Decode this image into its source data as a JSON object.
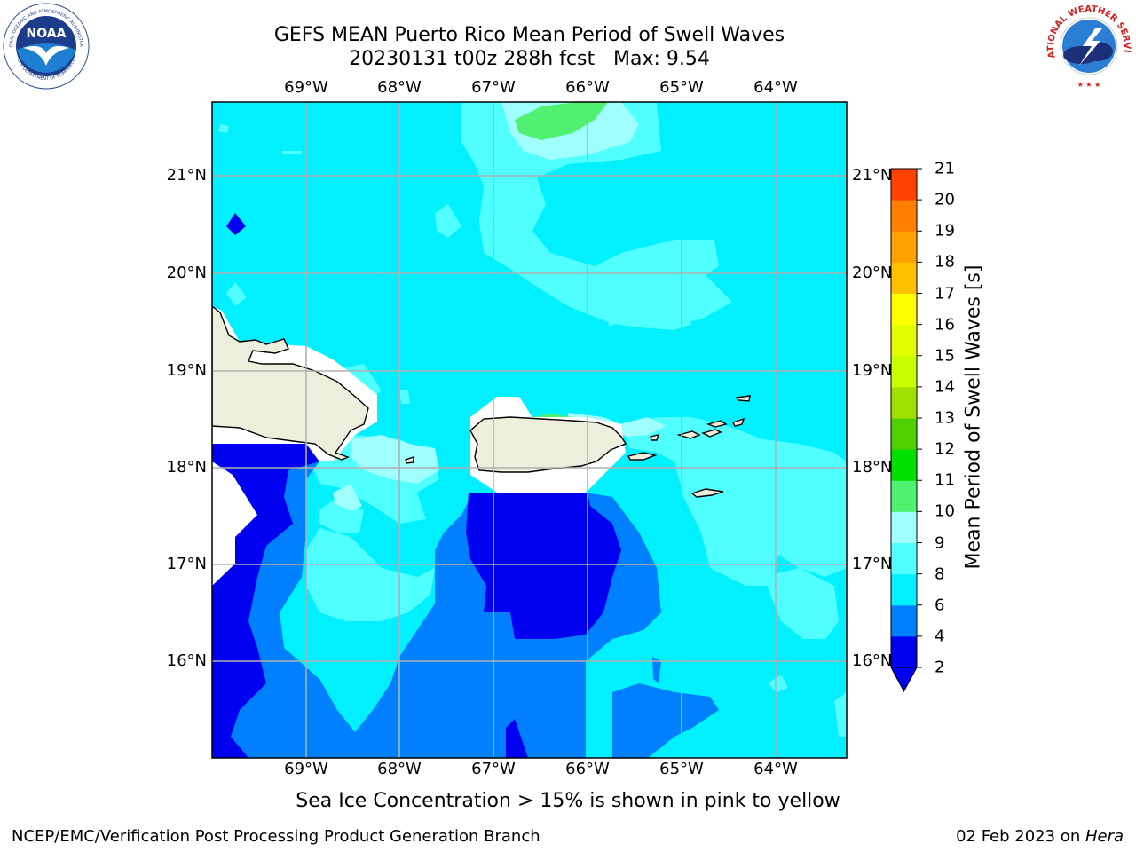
{
  "title": {
    "line1": "GEFS MEAN Puerto Rico Mean Period of Swell Waves",
    "line2": "20230131 t00z 288h fcst   Max: 9.54"
  },
  "map": {
    "lon_labels": [
      "69°W",
      "68°W",
      "67°W",
      "66°W",
      "65°W",
      "64°W"
    ],
    "lat_labels": [
      "21°N",
      "20°N",
      "19°N",
      "18°N",
      "17°N",
      "16°N"
    ],
    "colors": {
      "c2_4": "#0000f0",
      "c4_6": "#0080ff",
      "c6_8": "#00f0ff",
      "c8_9": "#50ffff",
      "c9_10": "#a0ffff",
      "c10_11": "#50f070",
      "land": "#eeeedc"
    }
  },
  "colorbar": {
    "label": "Mean Period of Swell Waves [s]",
    "ticks": [
      "2",
      "4",
      "6",
      "8",
      "9",
      "10",
      "11",
      "12",
      "13",
      "14",
      "15",
      "16",
      "17",
      "18",
      "19",
      "20",
      "21"
    ],
    "colors": [
      "#0000f0",
      "#0080ff",
      "#00f0ff",
      "#50ffff",
      "#a0ffff",
      "#50f070",
      "#00e000",
      "#50d000",
      "#a0e000",
      "#c8ff00",
      "#e0ff00",
      "#ffff00",
      "#ffc000",
      "#ffa000",
      "#ff8000",
      "#ff4000",
      "#ff0000"
    ]
  },
  "subtitle": "Sea Ice Concentration > 15% is shown in pink to yellow",
  "footer": {
    "left": "NCEP/EMC/Verification Post Processing Product Generation Branch",
    "date": "02 Feb 2023 on ",
    "host": "Hera"
  },
  "logos": {
    "noaa_text": "NOAA",
    "noaa_ring": "NATIONAL OCEANIC AND ATMOSPHERIC ADMINISTRATION",
    "noaa_ring_bottom": "U.S. DEPARTMENT OF COMMERCE",
    "nws_ring": "NATIONAL WEATHER SERVICE"
  }
}
